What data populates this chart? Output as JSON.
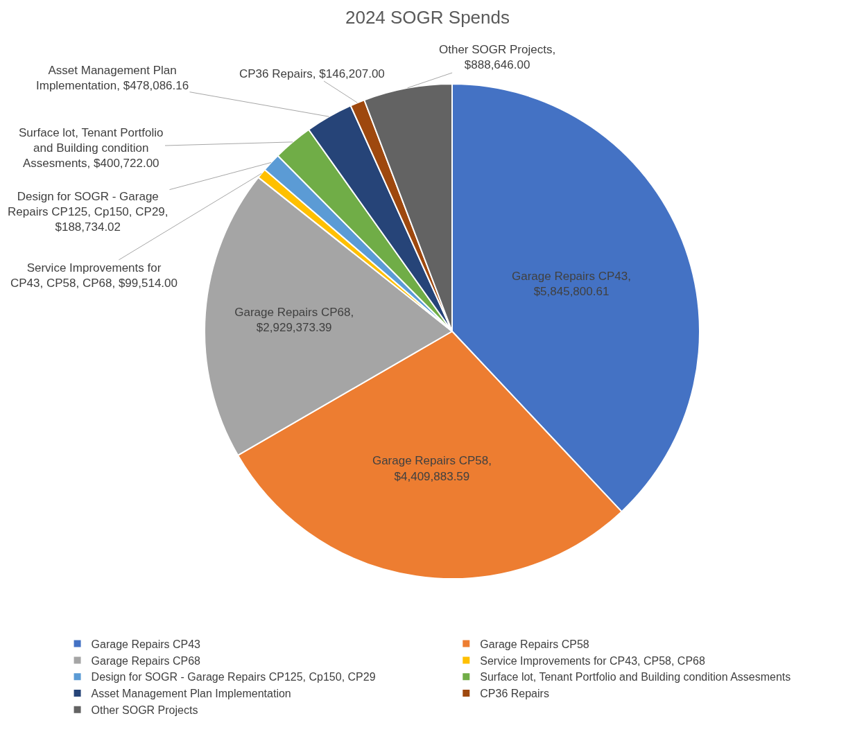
{
  "chart_data": {
    "type": "pie",
    "title": "2024 SOGR Spends",
    "categories": [
      "Garage Repairs CP43",
      "Garage Repairs CP58",
      "Garage Repairs CP68",
      "Service Improvements for CP43, CP58, CP68",
      "Design for SOGR - Garage Repairs CP125, Cp150, CP29",
      "Surface lot, Tenant Portfolio and Building condition Assesments",
      "Asset Management Plan Implementation",
      "CP36 Repairs",
      "Other SOGR Projects"
    ],
    "values": [
      5845800.61,
      4409883.59,
      2929373.39,
      99514.0,
      188734.02,
      400722.0,
      478086.16,
      146207.0,
      888646.0
    ],
    "value_labels": [
      "Garage Repairs CP43, $5,845,800.61",
      "Garage Repairs CP58, $4,409,883.59",
      "Garage Repairs CP68, $2,929,373.39",
      "Service Improvements for CP43, CP58, CP68, $99,514.00",
      "Design for SOGR - Garage Repairs CP125, Cp150, CP29, $188,734.02",
      "Surface lot, Tenant Portfolio and Building condition Assesments, $400,722.00",
      "Asset Management Plan Implementation, $478,086.16",
      "CP36 Repairs, $146,207.00",
      "Other SOGR Projects, $888,646.00"
    ],
    "colors": [
      "#4472c4",
      "#ed7d31",
      "#a5a5a5",
      "#ffc000",
      "#5b9bd5",
      "#70ad47",
      "#264478",
      "#9e480e",
      "#636363"
    ],
    "legend": "bottom"
  }
}
